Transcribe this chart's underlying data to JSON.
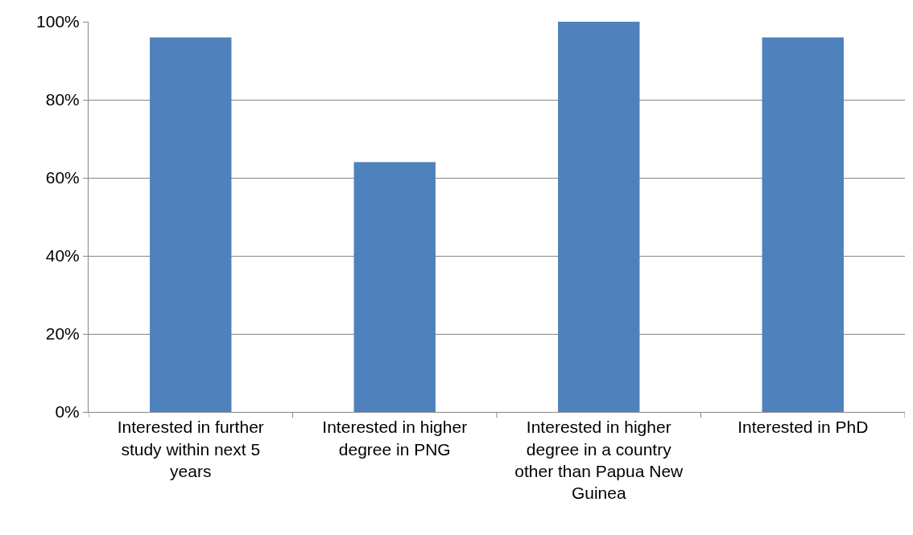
{
  "chart_data": {
    "type": "bar",
    "categories": [
      "Interested in further study within next 5 years",
      "Interested in higher degree in PNG",
      "Interested in higher degree in a country other than Papua New Guinea",
      "Interested in PhD"
    ],
    "values": [
      96,
      64,
      100,
      96
    ],
    "color": "#4f81bd",
    "ylim": [
      0,
      100
    ],
    "yticks": [
      {
        "value": 0,
        "label": "0%"
      },
      {
        "value": 20,
        "label": "20%"
      },
      {
        "value": 40,
        "label": "40%"
      },
      {
        "value": 60,
        "label": "60%"
      },
      {
        "value": 80,
        "label": "80%"
      },
      {
        "value": 100,
        "label": "100%"
      }
    ],
    "grid": "y"
  }
}
